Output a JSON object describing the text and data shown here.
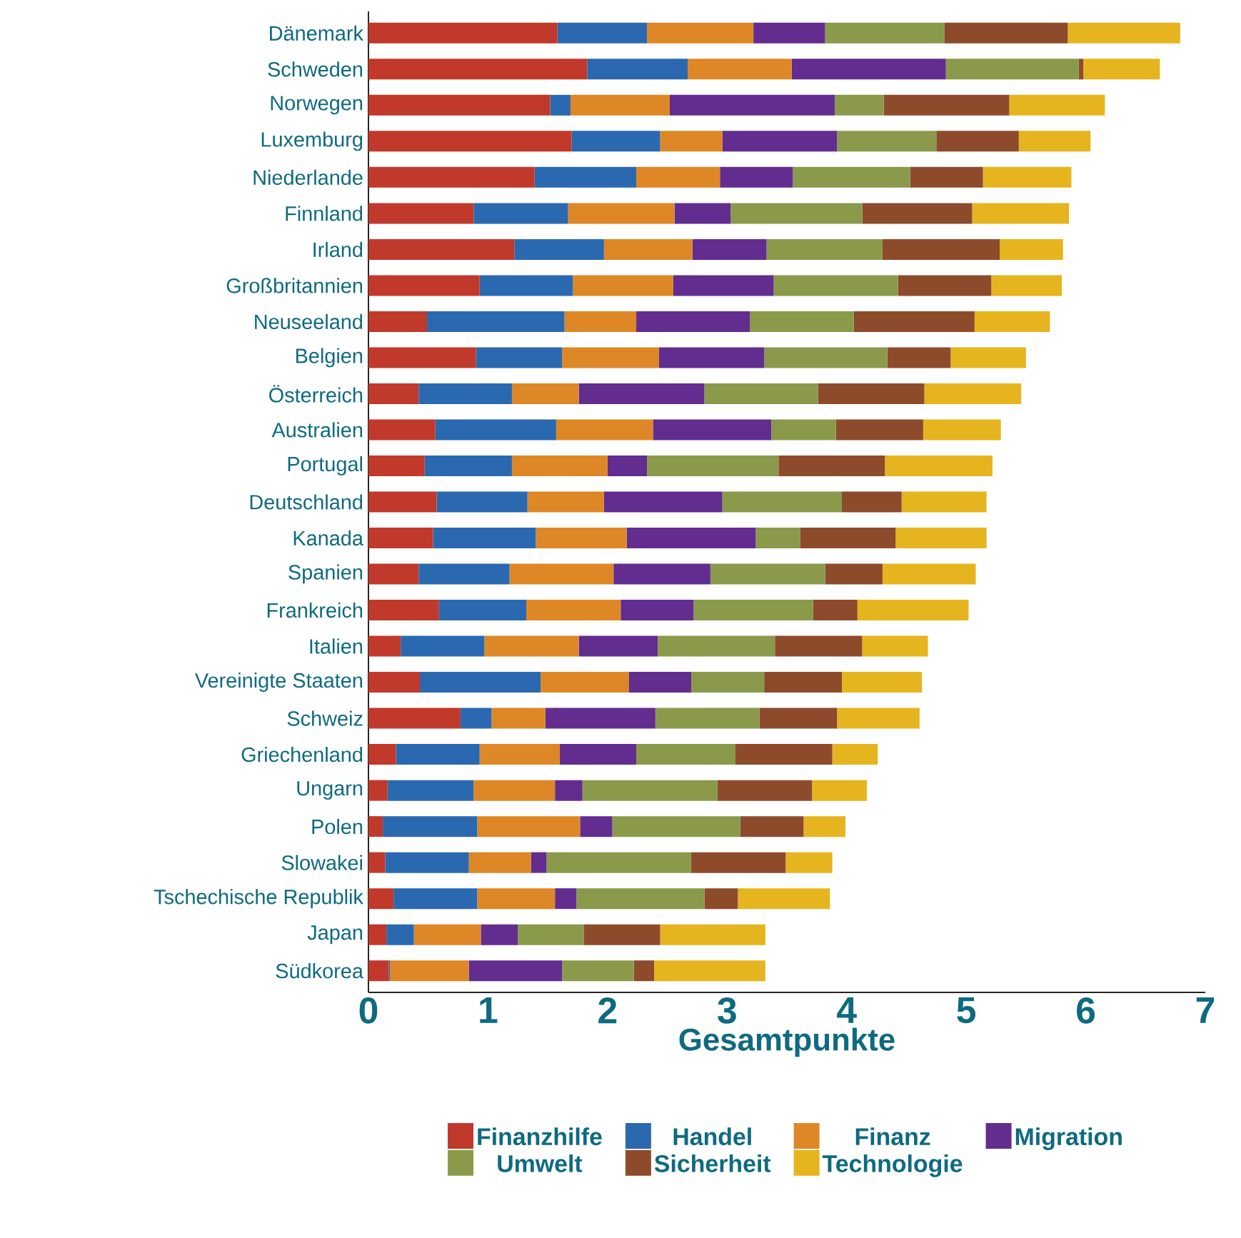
{
  "chart_data": {
    "type": "bar",
    "orientation": "horizontal",
    "stacked": true,
    "xlabel": "Gesamtpunkte",
    "xlim": [
      0,
      7
    ],
    "xticks": [
      0,
      1,
      2,
      3,
      4,
      5,
      6,
      7
    ],
    "legend": "bottom",
    "grid": false,
    "categories": [
      "Dänemark",
      "Schweden",
      "Norwegen",
      "Luxemburg",
      "Niederlande",
      "Finnland",
      "Irland",
      "Großbritannien",
      "Neuseeland",
      "Belgien",
      "Österreich",
      "Australien",
      "Portugal",
      "Deutschland",
      "Kanada",
      "Spanien",
      "Frankreich",
      "Italien",
      "Vereinigte Staaten",
      "Schweiz",
      "Griechenland",
      "Ungarn",
      "Polen",
      "Slowakei",
      "Tschechische Republik",
      "Japan",
      "Südkorea"
    ],
    "series": [
      {
        "name": "Finanzhilfe",
        "color": "#c0392b",
        "values": [
          1.58,
          1.83,
          1.52,
          1.7,
          1.39,
          0.88,
          1.22,
          0.93,
          0.49,
          0.9,
          0.42,
          0.56,
          0.47,
          0.57,
          0.54,
          0.42,
          0.59,
          0.27,
          0.43,
          0.77,
          0.23,
          0.16,
          0.12,
          0.14,
          0.21,
          0.15,
          0.17
        ]
      },
      {
        "name": "Handel",
        "color": "#2a69b0",
        "values": [
          0.75,
          0.84,
          0.17,
          0.74,
          0.85,
          0.79,
          0.75,
          0.78,
          1.15,
          0.72,
          0.78,
          1.01,
          0.73,
          0.76,
          0.86,
          0.76,
          0.73,
          0.7,
          1.01,
          0.26,
          0.7,
          0.72,
          0.79,
          0.7,
          0.7,
          0.23,
          0.01
        ]
      },
      {
        "name": "Finanz",
        "color": "#de8726",
        "values": [
          0.89,
          0.87,
          0.83,
          0.52,
          0.7,
          0.89,
          0.74,
          0.84,
          0.6,
          0.81,
          0.56,
          0.81,
          0.8,
          0.64,
          0.76,
          0.87,
          0.79,
          0.79,
          0.74,
          0.45,
          0.67,
          0.68,
          0.86,
          0.52,
          0.65,
          0.56,
          0.66
        ]
      },
      {
        "name": "Migration",
        "color": "#632c8f",
        "values": [
          0.6,
          1.29,
          1.38,
          0.96,
          0.61,
          0.47,
          0.62,
          0.84,
          0.95,
          0.88,
          1.05,
          0.99,
          0.33,
          0.99,
          1.08,
          0.81,
          0.61,
          0.66,
          0.52,
          0.92,
          0.64,
          0.23,
          0.27,
          0.13,
          0.18,
          0.31,
          0.78
        ]
      },
      {
        "name": "Umwelt",
        "color": "#8a9a4a",
        "values": [
          1.0,
          1.11,
          0.41,
          0.83,
          0.98,
          1.1,
          0.97,
          1.04,
          0.87,
          1.03,
          0.95,
          0.54,
          1.1,
          1.0,
          0.37,
          0.96,
          1.0,
          0.98,
          0.61,
          0.87,
          0.83,
          1.13,
          1.07,
          1.21,
          1.07,
          0.55,
          0.6
        ]
      },
      {
        "name": "Sicherheit",
        "color": "#8e4b2b",
        "values": [
          1.03,
          0.04,
          1.05,
          0.69,
          0.61,
          0.92,
          0.98,
          0.78,
          1.01,
          0.53,
          0.89,
          0.73,
          0.89,
          0.5,
          0.8,
          0.48,
          0.37,
          0.73,
          0.65,
          0.65,
          0.81,
          0.79,
          0.53,
          0.79,
          0.28,
          0.64,
          0.17
        ]
      },
      {
        "name": "Technologie",
        "color": "#e6b41e",
        "values": [
          0.94,
          0.64,
          0.8,
          0.6,
          0.74,
          0.81,
          0.53,
          0.59,
          0.63,
          0.63,
          0.81,
          0.65,
          0.9,
          0.71,
          0.76,
          0.78,
          0.93,
          0.55,
          0.67,
          0.69,
          0.38,
          0.46,
          0.35,
          0.39,
          0.77,
          0.88,
          0.93
        ]
      }
    ]
  }
}
